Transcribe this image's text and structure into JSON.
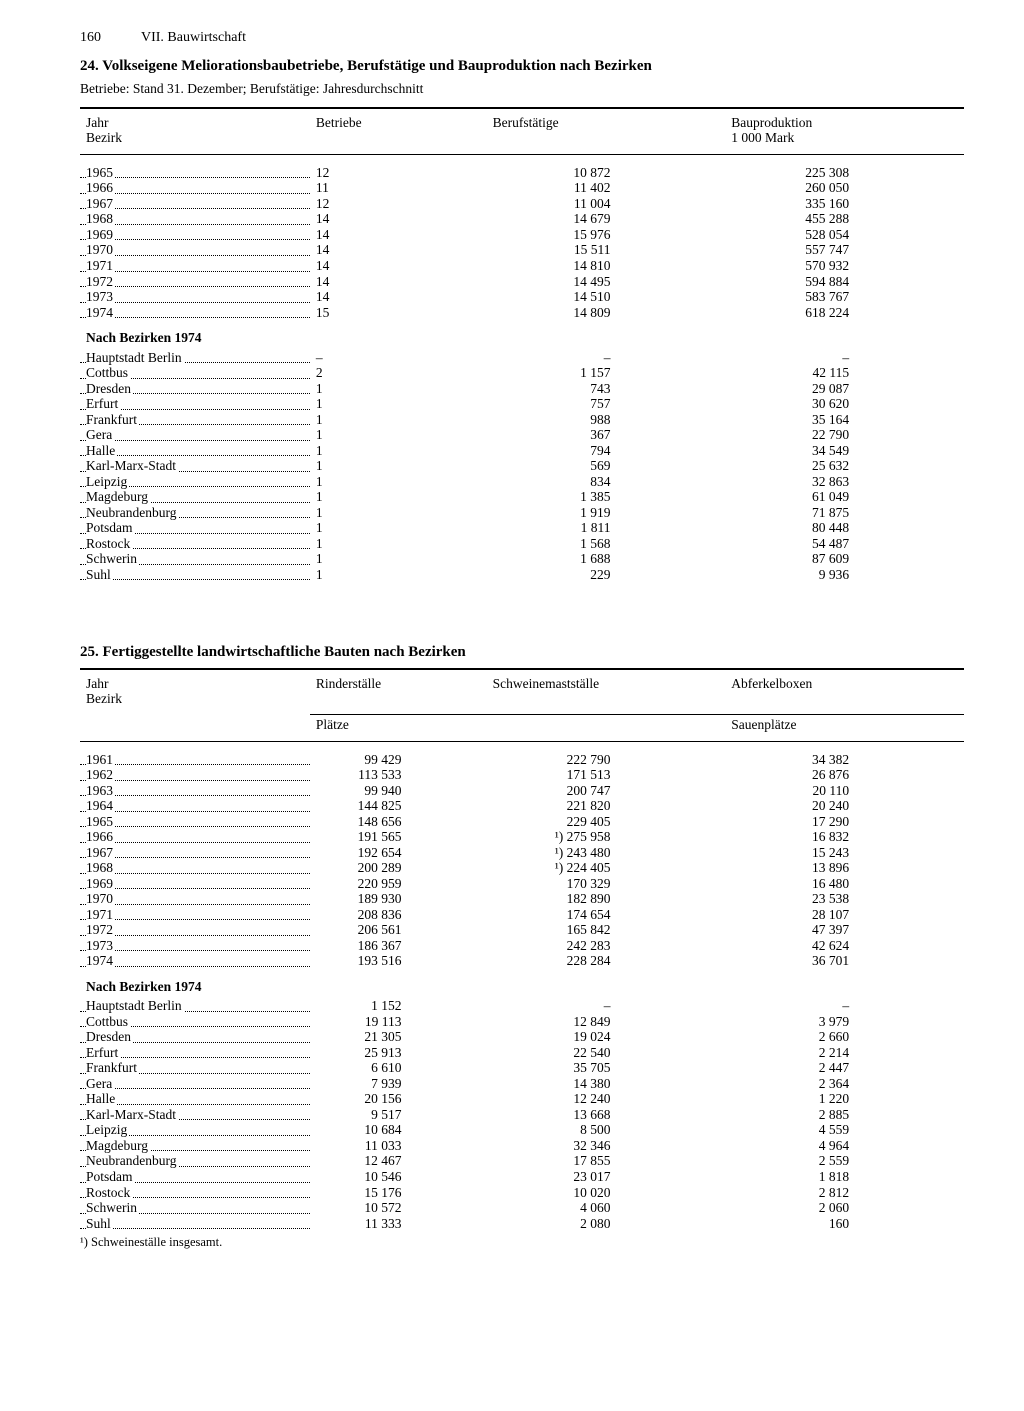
{
  "page_number": "160",
  "chapter": "VII. Bauwirtschaft",
  "table24": {
    "number": "24.",
    "title": "Volkseigene Meliorationsbaubetriebe, Berufstätige und Bauproduktion nach Bezirken",
    "subtitle": "Betriebe: Stand 31. Dezember; Berufstätige: Jahresdurchschnitt",
    "columns": {
      "col1": "Jahr\nBezirk",
      "col2": "Betriebe",
      "col3": "Berufstätige",
      "col4": "Bauproduktion\n1 000 Mark"
    },
    "years": [
      {
        "label": "1965",
        "c2": "12",
        "c3": "10 872",
        "c4": "225 308"
      },
      {
        "label": "1966",
        "c2": "11",
        "c3": "11 402",
        "c4": "260 050"
      },
      {
        "label": "1967",
        "c2": "12",
        "c3": "11 004",
        "c4": "335 160"
      },
      {
        "label": "1968",
        "c2": "14",
        "c3": "14 679",
        "c4": "455 288"
      },
      {
        "label": "1969",
        "c2": "14",
        "c3": "15 976",
        "c4": "528 054"
      },
      {
        "label": "1970",
        "c2": "14",
        "c3": "15 511",
        "c4": "557 747"
      },
      {
        "label": "1971",
        "c2": "14",
        "c3": "14 810",
        "c4": "570 932"
      },
      {
        "label": "1972",
        "c2": "14",
        "c3": "14 495",
        "c4": "594 884"
      },
      {
        "label": "1973",
        "c2": "14",
        "c3": "14 510",
        "c4": "583 767"
      },
      {
        "label": "1974",
        "c2": "15",
        "c3": "14 809",
        "c4": "618 224"
      }
    ],
    "section_label": "Nach Bezirken 1974",
    "districts": [
      {
        "label": "Hauptstadt Berlin",
        "c2": "–",
        "c3": "–",
        "c4": "–"
      },
      {
        "label": "Cottbus",
        "c2": "2",
        "c3": "1 157",
        "c4": "42 115"
      },
      {
        "label": "Dresden",
        "c2": "1",
        "c3": "743",
        "c4": "29 087"
      },
      {
        "label": "Erfurt",
        "c2": "1",
        "c3": "757",
        "c4": "30 620"
      },
      {
        "label": "Frankfurt",
        "c2": "1",
        "c3": "988",
        "c4": "35 164"
      },
      {
        "label": "Gera",
        "c2": "1",
        "c3": "367",
        "c4": "22 790"
      },
      {
        "label": "Halle",
        "c2": "1",
        "c3": "794",
        "c4": "34 549"
      },
      {
        "label": "Karl-Marx-Stadt",
        "c2": "1",
        "c3": "569",
        "c4": "25 632"
      },
      {
        "label": "Leipzig",
        "c2": "1",
        "c3": "834",
        "c4": "32 863"
      },
      {
        "label": "Magdeburg",
        "c2": "1",
        "c3": "1 385",
        "c4": "61 049"
      },
      {
        "label": "Neubrandenburg",
        "c2": "1",
        "c3": "1 919",
        "c4": "71 875"
      },
      {
        "label": "Potsdam",
        "c2": "1",
        "c3": "1 811",
        "c4": "80 448"
      },
      {
        "label": "Rostock",
        "c2": "1",
        "c3": "1 568",
        "c4": "54 487"
      },
      {
        "label": "Schwerin",
        "c2": "1",
        "c3": "1 688",
        "c4": "87 609"
      },
      {
        "label": "Suhl",
        "c2": "1",
        "c3": "229",
        "c4": "9 936"
      }
    ]
  },
  "table25": {
    "number": "25.",
    "title": "Fertiggestellte landwirtschaftliche Bauten nach Bezirken",
    "columns": {
      "col1": "Jahr\nBezirk",
      "col2": "Rinderställe",
      "col3": "Schweinemastställe",
      "col4": "Abferkelboxen"
    },
    "sub_left": "Plätze",
    "sub_right": "Sauenplätze",
    "years": [
      {
        "label": "1961",
        "c2": "99 429",
        "c3": "222 790",
        "c4": "34 382"
      },
      {
        "label": "1962",
        "c2": "113 533",
        "c3": "171 513",
        "c4": "26 876"
      },
      {
        "label": "1963",
        "c2": "99 940",
        "c3": "200 747",
        "c4": "20 110"
      },
      {
        "label": "1964",
        "c2": "144 825",
        "c3": "221 820",
        "c4": "20 240"
      },
      {
        "label": "1965",
        "c2": "148 656",
        "c3": "229 405",
        "c4": "17 290"
      },
      {
        "label": "1966",
        "c2": "191 565",
        "c3": "¹) 275 958",
        "c4": "16 832"
      },
      {
        "label": "1967",
        "c2": "192 654",
        "c3": "¹) 243 480",
        "c4": "15 243"
      },
      {
        "label": "1968",
        "c2": "200 289",
        "c3": "¹) 224 405",
        "c4": "13 896"
      },
      {
        "label": "1969",
        "c2": "220 959",
        "c3": "170 329",
        "c4": "16 480"
      },
      {
        "label": "1970",
        "c2": "189 930",
        "c3": "182 890",
        "c4": "23 538"
      },
      {
        "label": "1971",
        "c2": "208 836",
        "c3": "174 654",
        "c4": "28 107"
      },
      {
        "label": "1972",
        "c2": "206 561",
        "c3": "165 842",
        "c4": "47 397"
      },
      {
        "label": "1973",
        "c2": "186 367",
        "c3": "242 283",
        "c4": "42 624"
      },
      {
        "label": "1974",
        "c2": "193 516",
        "c3": "228 284",
        "c4": "36 701"
      }
    ],
    "section_label": "Nach Bezirken 1974",
    "districts": [
      {
        "label": "Hauptstadt Berlin",
        "c2": "1 152",
        "c3": "–",
        "c4": "–"
      },
      {
        "label": "Cottbus",
        "c2": "19 113",
        "c3": "12 849",
        "c4": "3 979"
      },
      {
        "label": "Dresden",
        "c2": "21 305",
        "c3": "19 024",
        "c4": "2 660"
      },
      {
        "label": "Erfurt",
        "c2": "25 913",
        "c3": "22 540",
        "c4": "2 214"
      },
      {
        "label": "Frankfurt",
        "c2": "6 610",
        "c3": "35 705",
        "c4": "2 447"
      },
      {
        "label": "Gera",
        "c2": "7 939",
        "c3": "14 380",
        "c4": "2 364"
      },
      {
        "label": "Halle",
        "c2": "20 156",
        "c3": "12 240",
        "c4": "1 220"
      },
      {
        "label": "Karl-Marx-Stadt",
        "c2": "9 517",
        "c3": "13 668",
        "c4": "2 885"
      },
      {
        "label": "Leipzig",
        "c2": "10 684",
        "c3": "8 500",
        "c4": "4 559"
      },
      {
        "label": "Magdeburg",
        "c2": "11 033",
        "c3": "32 346",
        "c4": "4 964"
      },
      {
        "label": "Neubrandenburg",
        "c2": "12 467",
        "c3": "17 855",
        "c4": "2 559"
      },
      {
        "label": "Potsdam",
        "c2": "10 546",
        "c3": "23 017",
        "c4": "1 818"
      },
      {
        "label": "Rostock",
        "c2": "15 176",
        "c3": "10 020",
        "c4": "2 812"
      },
      {
        "label": "Schwerin",
        "c2": "10 572",
        "c3": "4 060",
        "c4": "2 060"
      },
      {
        "label": "Suhl",
        "c2": "11 333",
        "c3": "2 080",
        "c4": "160"
      }
    ],
    "footnote": "¹) Schweineställe insgesamt."
  },
  "colwidths": {
    "c1": "26%",
    "c2": "20%",
    "c3": "27%",
    "c4": "27%"
  },
  "num_col_inner_left": "52%"
}
